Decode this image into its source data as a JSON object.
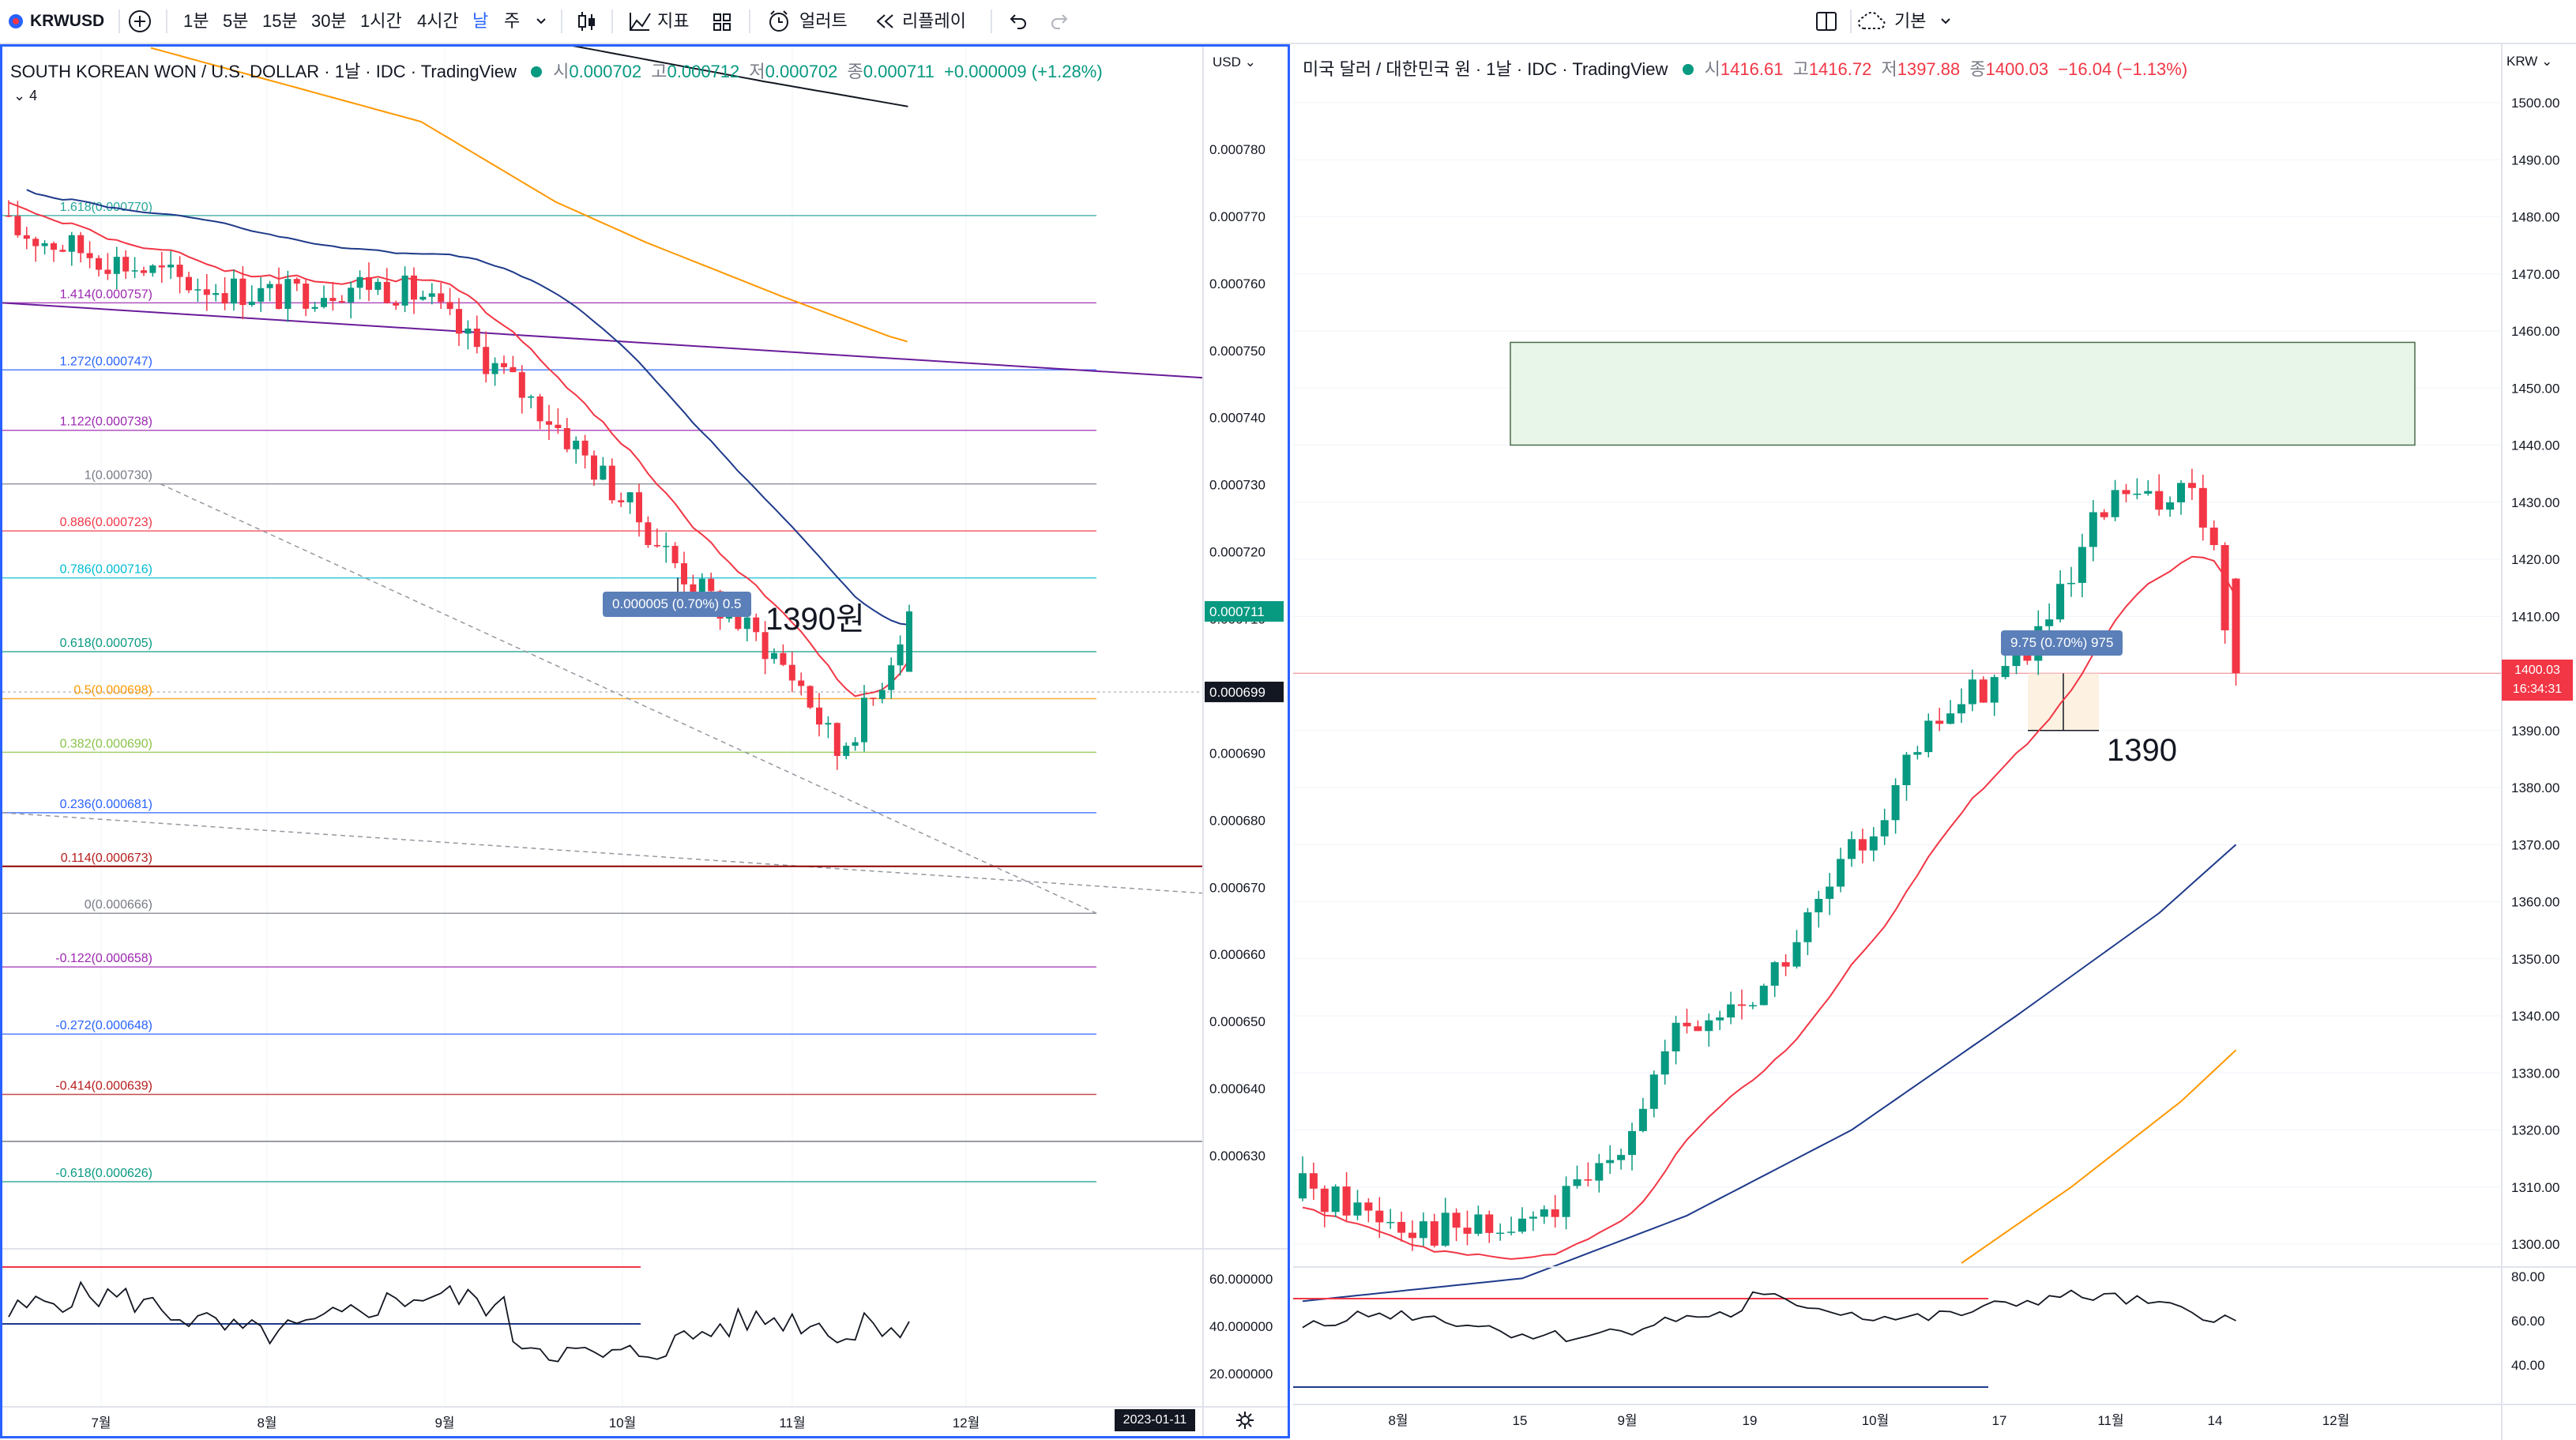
{
  "toolbar": {
    "symbol": "KRWUSD",
    "intervals": [
      "1분",
      "5분",
      "15분",
      "30분",
      "1시간",
      "4시간",
      "날",
      "주"
    ],
    "active_interval": "날",
    "indicators_label": "지표",
    "alert_label": "얼러트",
    "replay_label": "리플레이",
    "layout_label": "기본"
  },
  "left_chart": {
    "title": "SOUTH KOREAN WON / U.S. DOLLAR · 1날 · IDC · TradingView",
    "ohlc": {
      "o_label": "시",
      "o": "0.000702",
      "h_label": "고",
      "h": "0.000712",
      "l_label": "저",
      "l": "0.000702",
      "c_label": "종",
      "c": "0.000711",
      "change": "+0.000009 (+1.28%)"
    },
    "indicator_count": "4",
    "currency": "USD",
    "price_ticks": [
      "0.000780",
      "0.000770",
      "0.000760",
      "0.000750",
      "0.000740",
      "0.000730",
      "0.000720",
      "0.000710",
      "0.000700",
      "0.000690",
      "0.000680",
      "0.000670",
      "0.000660",
      "0.000650",
      "0.000640",
      "0.000630"
    ],
    "last_price_label": "0.000711",
    "crosshair_price_label": "0.000699",
    "fib_levels": [
      {
        "label": "1.618(0.000770)",
        "color": "#26a69a"
      },
      {
        "label": "1.414(0.000757)",
        "color": "#9c27b0"
      },
      {
        "label": "1.272(0.000747)",
        "color": "#2962ff"
      },
      {
        "label": "1.122(0.000738)",
        "color": "#9c27b0"
      },
      {
        "label": "1(0.000730)",
        "color": "#787b86"
      },
      {
        "label": "0.886(0.000723)",
        "color": "#f23645"
      },
      {
        "label": "0.786(0.000716)",
        "color": "#00bcd4"
      },
      {
        "label": "0.618(0.000705)",
        "color": "#089981"
      },
      {
        "label": "0.5(0.000698)",
        "color": "#ff9800"
      },
      {
        "label": "0.382(0.000690)",
        "color": "#8bc34a"
      },
      {
        "label": "0.236(0.000681)",
        "color": "#2962ff"
      },
      {
        "label": "0.114(0.000673)",
        "color": "#b71c1c"
      },
      {
        "label": "0(0.000666)",
        "color": "#787b86"
      },
      {
        "label": "-0.122(0.000658)",
        "color": "#9c27b0"
      },
      {
        "label": "-0.272(0.000648)",
        "color": "#2962ff"
      },
      {
        "label": "-0.414(0.000639)",
        "color": "#b71c1c"
      },
      {
        "label": "-0.618(0.000626)",
        "color": "#089981"
      }
    ],
    "measure_label": "0.000005 (0.70%) 0.5",
    "annotation": "1390원",
    "rsi_ticks": [
      "60.000000",
      "40.000000",
      "20.000000"
    ],
    "time_ticks": [
      "7월",
      "8월",
      "9월",
      "10월",
      "11월",
      "12월"
    ],
    "date_marker": "2023-01-11",
    "colors": {
      "up": "#089981",
      "down": "#f23645",
      "ma_red": "#f23645",
      "ma_blue": "#1e3a8a",
      "ma_orange": "#ff9800",
      "ma_black": "#131722"
    }
  },
  "right_chart": {
    "title": "미국 달러 / 대한민국 원 · 1날 · IDC · TradingView",
    "ohlc": {
      "o_label": "시",
      "o": "1416.61",
      "h_label": "고",
      "h": "1416.72",
      "l_label": "저",
      "l": "1397.88",
      "c_label": "종",
      "c": "1400.03",
      "change": "−16.04 (−1.13%)"
    },
    "currency": "KRW",
    "price_ticks": [
      "1500.00",
      "1490.00",
      "1480.00",
      "1470.00",
      "1460.00",
      "1450.00",
      "1440.00",
      "1430.00",
      "1420.00",
      "1410.00",
      "1400.00",
      "1390.00",
      "1380.00",
      "1370.00",
      "1360.00",
      "1350.00",
      "1340.00",
      "1330.00",
      "1320.00",
      "1310.00",
      "1300.00"
    ],
    "last_price_label": "1400.03",
    "countdown": "16:34:31",
    "measure_label": "9.75 (0.70%) 975",
    "annotation": "1390",
    "rsi_ticks": [
      "80.00",
      "60.00",
      "40.00"
    ],
    "time_ticks": [
      "8월",
      "15",
      "9월",
      "19",
      "10월",
      "17",
      "11월",
      "14",
      "12월"
    ]
  }
}
